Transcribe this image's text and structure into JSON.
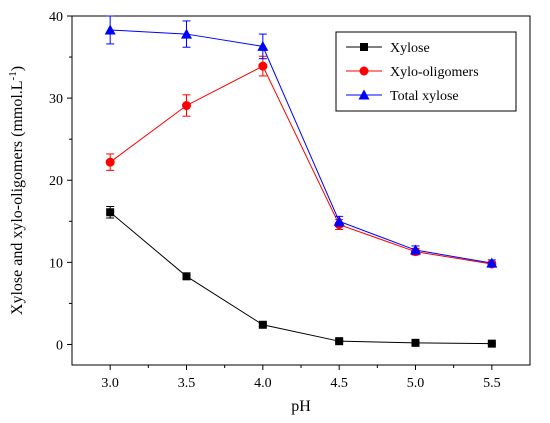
{
  "chart_data": {
    "type": "line",
    "title": "",
    "xlabel": "pH",
    "ylabel_main": "Xylose and xylo-oligomers (mmol.L",
    "ylabel_sup": "-1",
    "ylabel_tail": ")",
    "xlim": [
      2.75,
      5.75
    ],
    "ylim": [
      -2.5,
      40
    ],
    "x_ticks": [
      3.0,
      3.5,
      4.0,
      4.5,
      5.0,
      5.5
    ],
    "x_tick_labels": [
      "3.0",
      "3.5",
      "4.0",
      "4.5",
      "5.0",
      "5.5"
    ],
    "y_ticks": [
      0,
      10,
      20,
      30,
      40
    ],
    "y_tick_labels": [
      "0",
      "10",
      "20",
      "30",
      "40"
    ],
    "x": [
      3.0,
      3.5,
      4.0,
      4.5,
      5.0,
      5.5
    ],
    "legend_position": "top-right",
    "grid": false,
    "series": [
      {
        "name": "Xylose",
        "marker": "square",
        "color": "#000000",
        "values": [
          16.1,
          8.3,
          2.4,
          0.4,
          0.2,
          0.1
        ],
        "errors": [
          0.7,
          0.3,
          0.2,
          0.1,
          0.1,
          0.1
        ]
      },
      {
        "name": "Xylo-oligomers",
        "marker": "circle",
        "color": "#ff0000",
        "values": [
          22.2,
          29.1,
          33.9,
          14.6,
          11.3,
          9.8
        ],
        "errors": [
          1.0,
          1.3,
          1.2,
          0.6,
          0.4,
          0.3
        ]
      },
      {
        "name": "Total xylose",
        "marker": "triangle",
        "color": "#0000ff",
        "values": [
          38.3,
          37.8,
          36.3,
          15.0,
          11.5,
          9.9
        ],
        "errors": [
          1.7,
          1.6,
          1.5,
          0.6,
          0.5,
          0.4
        ]
      }
    ]
  }
}
